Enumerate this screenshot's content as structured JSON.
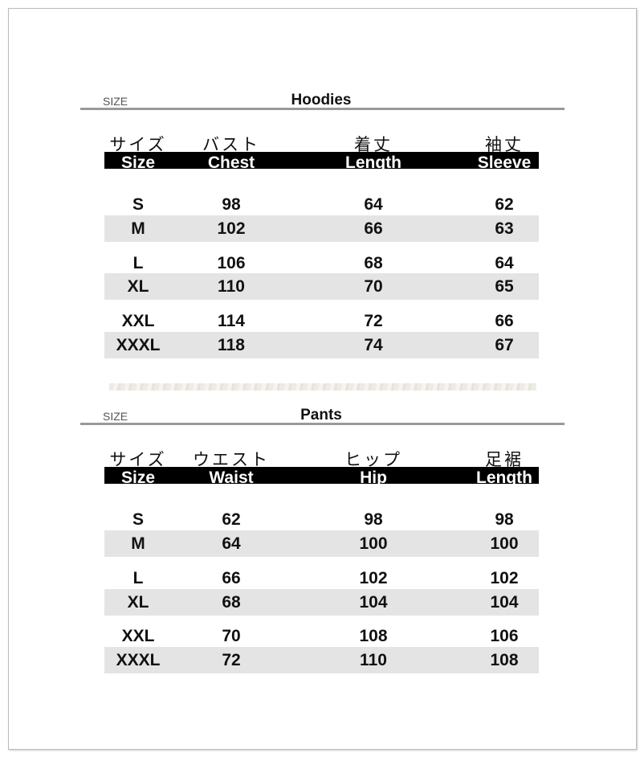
{
  "sections": [
    {
      "size_label": "SIZE",
      "title": "Hoodies",
      "headers_jp": [
        "サイズ",
        "バスト",
        "着丈",
        "袖丈"
      ],
      "headers_en": [
        "Size",
        "Chest",
        "Length",
        "Sleeve"
      ],
      "rows": [
        [
          "S",
          "98",
          "64",
          "62"
        ],
        [
          "M",
          "102",
          "66",
          "63"
        ],
        [
          "L",
          "106",
          "68",
          "64"
        ],
        [
          "XL",
          "110",
          "70",
          "65"
        ],
        [
          "XXL",
          "114",
          "72",
          "66"
        ],
        [
          "XXXL",
          "118",
          "74",
          "67"
        ]
      ]
    },
    {
      "size_label": "SIZE",
      "title": "Pants",
      "headers_jp": [
        "サイズ",
        "ウエスト",
        "ヒップ",
        "足裾"
      ],
      "headers_en": [
        "Size",
        "Waist",
        "Hip",
        "Length"
      ],
      "rows": [
        [
          "S",
          "62",
          "98",
          "98"
        ],
        [
          "M",
          "64",
          "100",
          "100"
        ],
        [
          "L",
          "66",
          "102",
          "102"
        ],
        [
          "XL",
          "68",
          "104",
          "104"
        ],
        [
          "XXL",
          "70",
          "108",
          "106"
        ],
        [
          "XXXL",
          "72",
          "110",
          "108"
        ]
      ]
    }
  ],
  "colors": {
    "header_bar": "#000000",
    "stripe_row": "#e4e4e4",
    "rule": "#999999"
  }
}
